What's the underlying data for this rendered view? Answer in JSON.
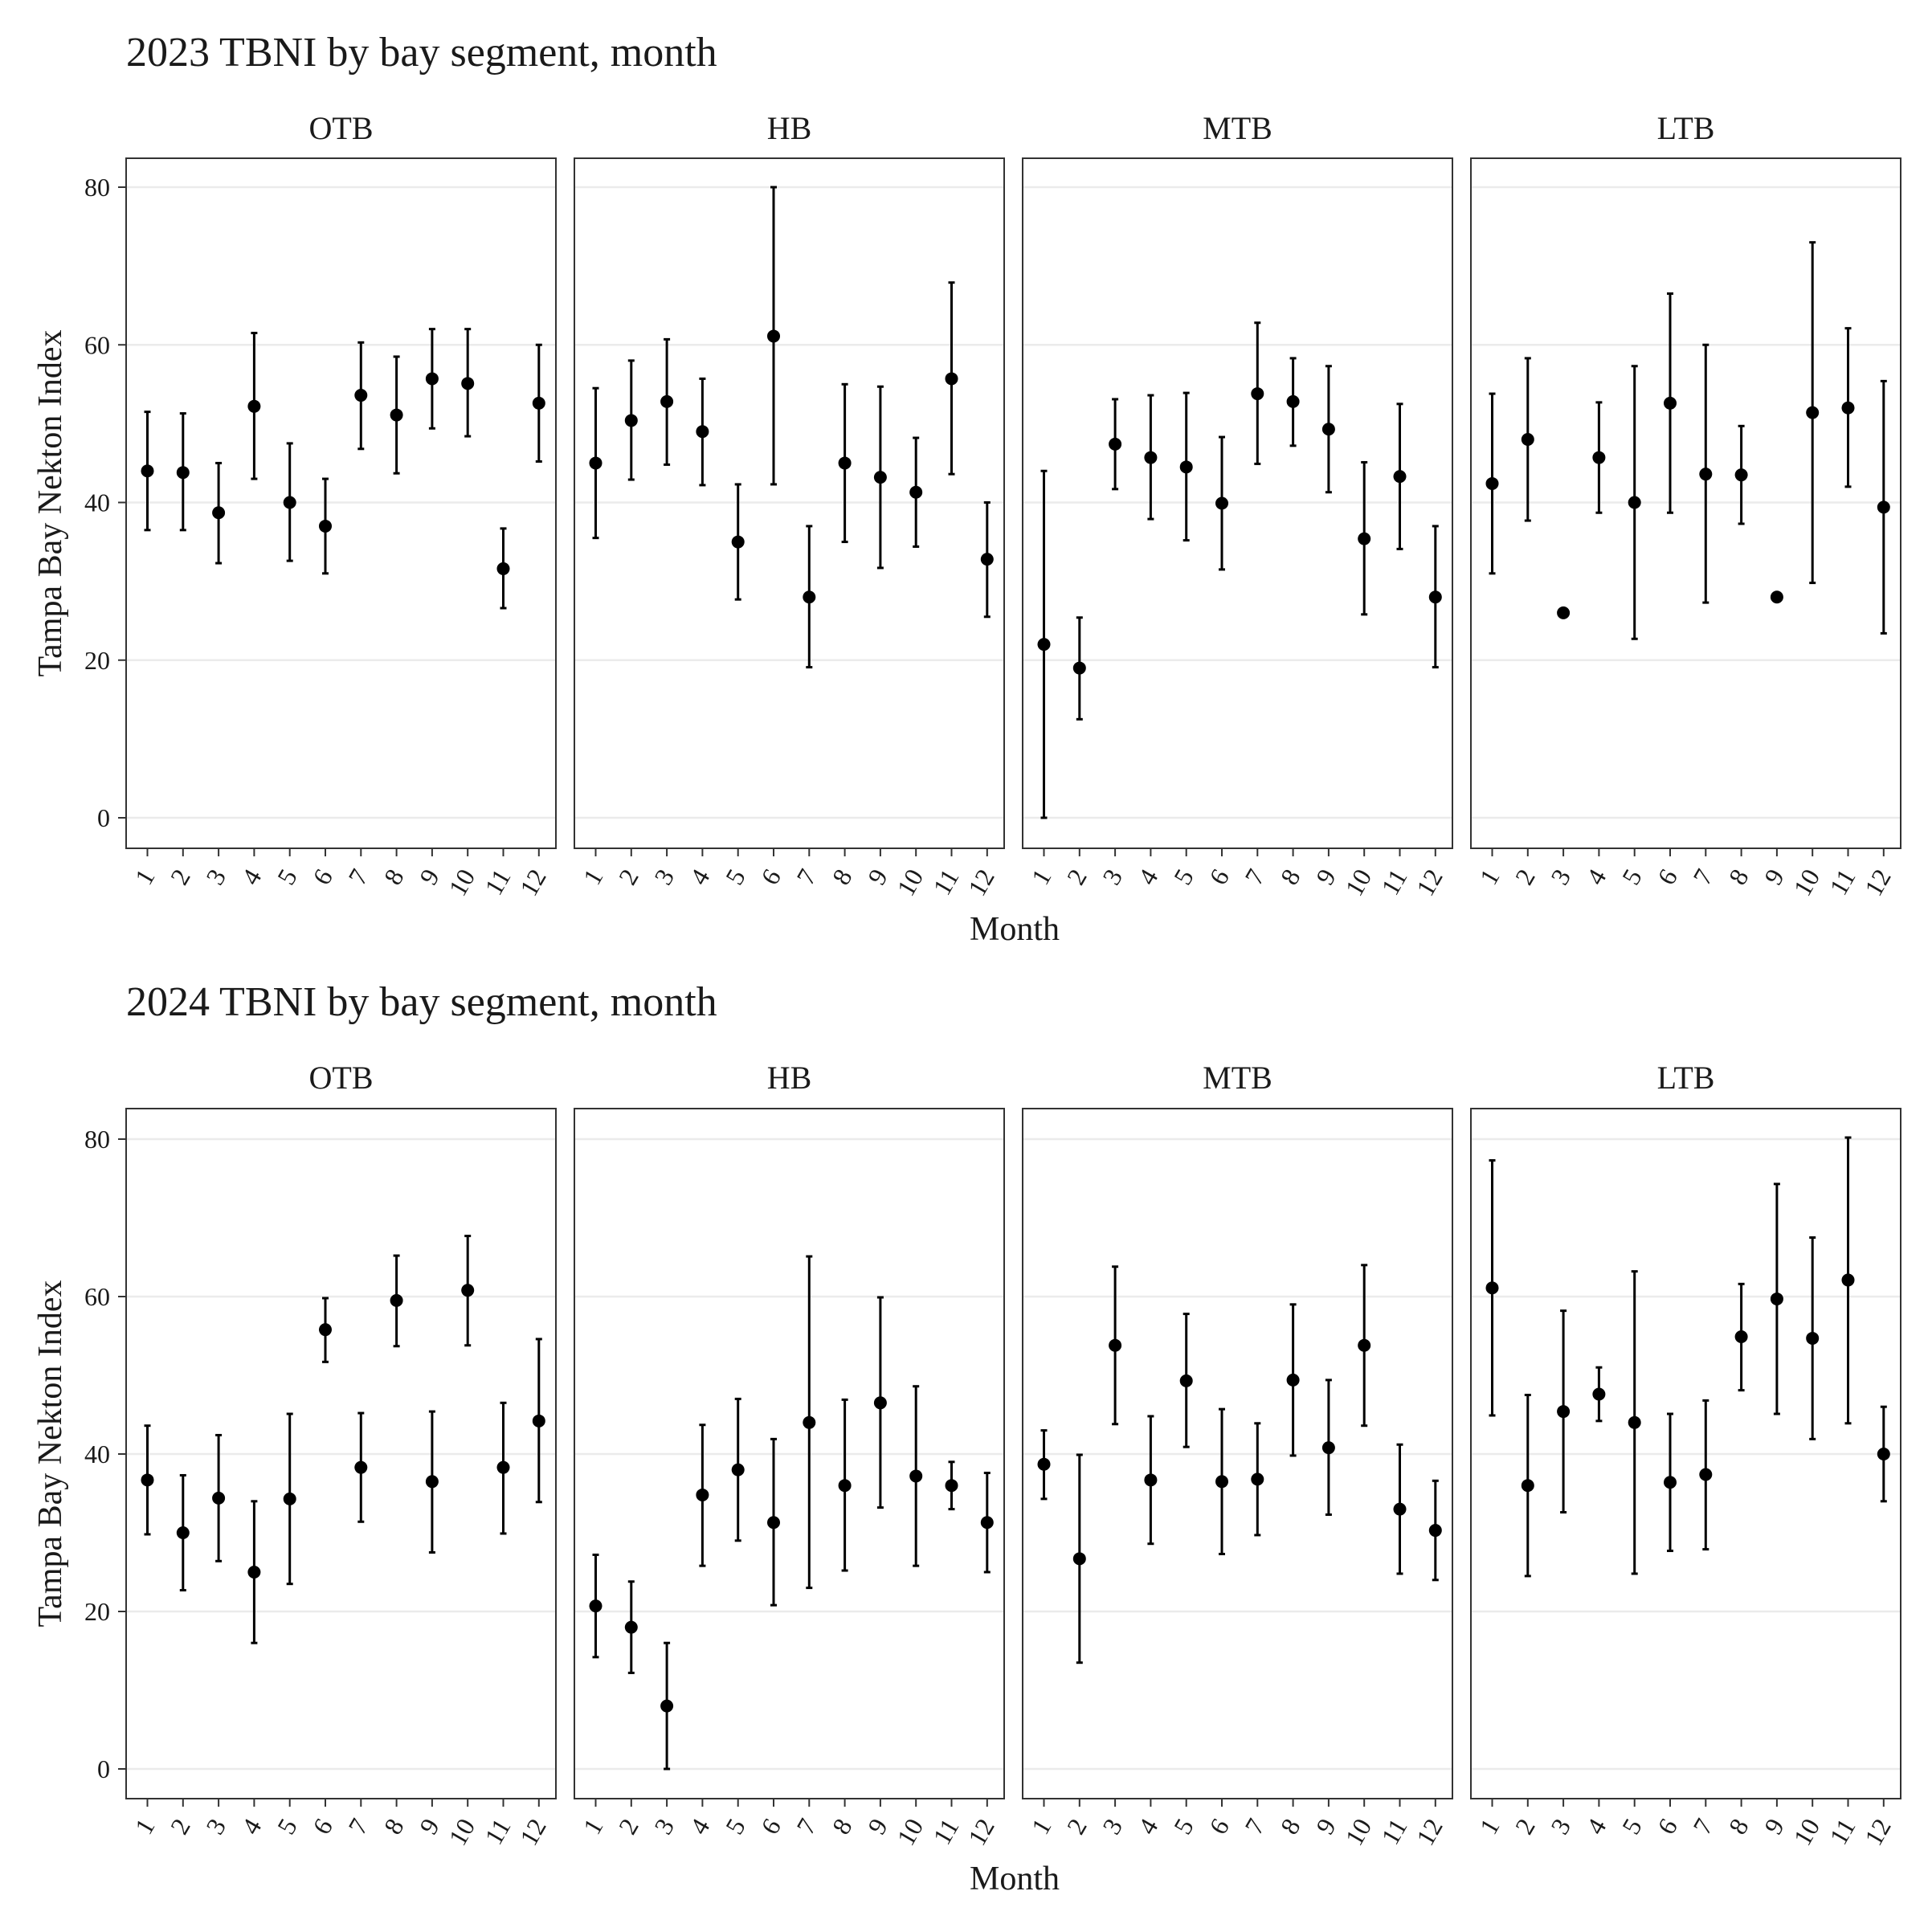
{
  "chart_data": [
    {
      "type": "errorbar",
      "title": "2023 TBNI by bay segment, month",
      "xlabel": "Month",
      "ylabel": "Tampa Bay Nekton Index",
      "ylim": [
        -3.8,
        83.8
      ],
      "yticks": [
        0,
        20,
        40,
        60,
        80
      ],
      "categories": [
        "1",
        "2",
        "3",
        "4",
        "5",
        "6",
        "7",
        "8",
        "9",
        "10",
        "11",
        "12"
      ],
      "grid": "horizontal major",
      "panels": [
        {
          "name": "OTB",
          "points": [
            {
              "x": "1",
              "y": 44,
              "lo": 36.5,
              "hi": 51.5
            },
            {
              "x": "2",
              "y": 43.8,
              "lo": 36.5,
              "hi": 51.3
            },
            {
              "x": "3",
              "y": 38.7,
              "lo": 32.3,
              "hi": 45
            },
            {
              "x": "4",
              "y": 52.2,
              "lo": 43,
              "hi": 61.5
            },
            {
              "x": "5",
              "y": 40,
              "lo": 32.6,
              "hi": 47.5
            },
            {
              "x": "6",
              "y": 37,
              "lo": 31,
              "hi": 43
            },
            {
              "x": "7",
              "y": 53.6,
              "lo": 46.8,
              "hi": 60.3
            },
            {
              "x": "8",
              "y": 51.1,
              "lo": 43.7,
              "hi": 58.5
            },
            {
              "x": "9",
              "y": 55.7,
              "lo": 49.4,
              "hi": 62
            },
            {
              "x": "10",
              "y": 55.1,
              "lo": 48.4,
              "hi": 62
            },
            {
              "x": "11",
              "y": 31.6,
              "lo": 26.6,
              "hi": 36.7
            },
            {
              "x": "12",
              "y": 52.6,
              "lo": 45.2,
              "hi": 60
            }
          ]
        },
        {
          "name": "HB",
          "points": [
            {
              "x": "1",
              "y": 45,
              "lo": 35.5,
              "hi": 54.5
            },
            {
              "x": "2",
              "y": 50.4,
              "lo": 42.9,
              "hi": 58
            },
            {
              "x": "3",
              "y": 52.8,
              "lo": 44.8,
              "hi": 60.7
            },
            {
              "x": "4",
              "y": 49,
              "lo": 42.2,
              "hi": 55.7
            },
            {
              "x": "5",
              "y": 35,
              "lo": 27.7,
              "hi": 42.3
            },
            {
              "x": "6",
              "y": 61.1,
              "lo": 42.3,
              "hi": 80
            },
            {
              "x": "7",
              "y": 28,
              "lo": 19.1,
              "hi": 37
            },
            {
              "x": "8",
              "y": 45,
              "lo": 35,
              "hi": 55
            },
            {
              "x": "9",
              "y": 43.2,
              "lo": 31.7,
              "hi": 54.7
            },
            {
              "x": "10",
              "y": 41.3,
              "lo": 34.4,
              "hi": 48.2
            },
            {
              "x": "11",
              "y": 55.7,
              "lo": 43.6,
              "hi": 67.9
            },
            {
              "x": "12",
              "y": 32.8,
              "lo": 25.5,
              "hi": 40
            }
          ]
        },
        {
          "name": "MTB",
          "points": [
            {
              "x": "1",
              "y": 22,
              "lo": 0,
              "hi": 44
            },
            {
              "x": "2",
              "y": 19,
              "lo": 12.5,
              "hi": 25.4
            },
            {
              "x": "3",
              "y": 47.4,
              "lo": 41.7,
              "hi": 53.1
            },
            {
              "x": "4",
              "y": 45.7,
              "lo": 37.9,
              "hi": 53.6
            },
            {
              "x": "5",
              "y": 44.5,
              "lo": 35.2,
              "hi": 53.9
            },
            {
              "x": "6",
              "y": 39.9,
              "lo": 31.5,
              "hi": 48.3
            },
            {
              "x": "7",
              "y": 53.8,
              "lo": 44.9,
              "hi": 62.8
            },
            {
              "x": "8",
              "y": 52.8,
              "lo": 47.2,
              "hi": 58.3
            },
            {
              "x": "9",
              "y": 49.3,
              "lo": 41.3,
              "hi": 57.3
            },
            {
              "x": "10",
              "y": 35.4,
              "lo": 25.8,
              "hi": 45.1
            },
            {
              "x": "11",
              "y": 43.3,
              "lo": 34.1,
              "hi": 52.5
            },
            {
              "x": "12",
              "y": 28,
              "lo": 19.1,
              "hi": 37
            }
          ]
        },
        {
          "name": "LTB",
          "points": [
            {
              "x": "1",
              "y": 42.4,
              "lo": 31,
              "hi": 53.8
            },
            {
              "x": "2",
              "y": 48,
              "lo": 37.7,
              "hi": 58.3
            },
            {
              "x": "3",
              "y": 26,
              "lo": 26,
              "hi": 26
            },
            {
              "x": "4",
              "y": 45.7,
              "lo": 38.7,
              "hi": 52.7
            },
            {
              "x": "5",
              "y": 40,
              "lo": 22.7,
              "hi": 57.3
            },
            {
              "x": "6",
              "y": 52.6,
              "lo": 38.7,
              "hi": 66.5
            },
            {
              "x": "7",
              "y": 43.6,
              "lo": 27.3,
              "hi": 60
            },
            {
              "x": "8",
              "y": 43.5,
              "lo": 37.3,
              "hi": 49.7
            },
            {
              "x": "9",
              "y": 28,
              "lo": 28,
              "hi": 28
            },
            {
              "x": "10",
              "y": 51.4,
              "lo": 29.8,
              "hi": 73
            },
            {
              "x": "11",
              "y": 52,
              "lo": 42,
              "hi": 62.1
            },
            {
              "x": "12",
              "y": 39.4,
              "lo": 23.4,
              "hi": 55.4
            }
          ]
        }
      ]
    },
    {
      "type": "errorbar",
      "title": "2024 TBNI by bay segment, month",
      "xlabel": "Month",
      "ylabel": "Tampa Bay Nekton Index",
      "ylim": [
        -3.8,
        83.8
      ],
      "yticks": [
        0,
        20,
        40,
        60,
        80
      ],
      "categories": [
        "1",
        "2",
        "3",
        "4",
        "5",
        "6",
        "7",
        "8",
        "9",
        "10",
        "11",
        "12"
      ],
      "grid": "horizontal major",
      "panels": [
        {
          "name": "OTB",
          "points": [
            {
              "x": "1",
              "y": 36.7,
              "lo": 29.8,
              "hi": 43.6
            },
            {
              "x": "2",
              "y": 30,
              "lo": 22.7,
              "hi": 37.3
            },
            {
              "x": "3",
              "y": 34.4,
              "lo": 26.4,
              "hi": 42.4
            },
            {
              "x": "4",
              "y": 25,
              "lo": 16,
              "hi": 34
            },
            {
              "x": "5",
              "y": 34.3,
              "lo": 23.5,
              "hi": 45.1
            },
            {
              "x": "6",
              "y": 55.8,
              "lo": 51.7,
              "hi": 59.8
            },
            {
              "x": "7",
              "y": 38.3,
              "lo": 31.4,
              "hi": 45.2
            },
            {
              "x": "8",
              "y": 59.5,
              "lo": 53.7,
              "hi": 65.2
            },
            {
              "x": "9",
              "y": 36.5,
              "lo": 27.5,
              "hi": 45.4
            },
            {
              "x": "10",
              "y": 60.8,
              "lo": 53.8,
              "hi": 67.7
            },
            {
              "x": "11",
              "y": 38.3,
              "lo": 29.9,
              "hi": 46.5
            },
            {
              "x": "12",
              "y": 44.2,
              "lo": 33.9,
              "hi": 54.6
            }
          ]
        },
        {
          "name": "HB",
          "points": [
            {
              "x": "1",
              "y": 20.7,
              "lo": 14.2,
              "hi": 27.2
            },
            {
              "x": "2",
              "y": 18,
              "lo": 12.2,
              "hi": 23.8
            },
            {
              "x": "3",
              "y": 8,
              "lo": 0,
              "hi": 16
            },
            {
              "x": "4",
              "y": 34.8,
              "lo": 25.8,
              "hi": 43.7
            },
            {
              "x": "5",
              "y": 38,
              "lo": 29,
              "hi": 47
            },
            {
              "x": "6",
              "y": 31.3,
              "lo": 20.8,
              "hi": 41.9
            },
            {
              "x": "7",
              "y": 44,
              "lo": 23,
              "hi": 65.1
            },
            {
              "x": "8",
              "y": 36,
              "lo": 25.2,
              "hi": 46.9
            },
            {
              "x": "9",
              "y": 46.5,
              "lo": 33.2,
              "hi": 59.9
            },
            {
              "x": "10",
              "y": 37.2,
              "lo": 25.8,
              "hi": 48.6
            },
            {
              "x": "11",
              "y": 36,
              "lo": 33,
              "hi": 39
            },
            {
              "x": "12",
              "y": 31.3,
              "lo": 25,
              "hi": 37.6
            }
          ]
        },
        {
          "name": "MTB",
          "points": [
            {
              "x": "1",
              "y": 38.7,
              "lo": 34.3,
              "hi": 43
            },
            {
              "x": "2",
              "y": 26.7,
              "lo": 13.5,
              "hi": 39.9
            },
            {
              "x": "3",
              "y": 53.8,
              "lo": 43.8,
              "hi": 63.8
            },
            {
              "x": "4",
              "y": 36.7,
              "lo": 28.6,
              "hi": 44.8
            },
            {
              "x": "5",
              "y": 49.3,
              "lo": 40.9,
              "hi": 57.8
            },
            {
              "x": "6",
              "y": 36.5,
              "lo": 27.3,
              "hi": 45.7
            },
            {
              "x": "7",
              "y": 36.8,
              "lo": 29.7,
              "hi": 43.9
            },
            {
              "x": "8",
              "y": 49.4,
              "lo": 39.8,
              "hi": 59
            },
            {
              "x": "9",
              "y": 40.8,
              "lo": 32.3,
              "hi": 49.4
            },
            {
              "x": "10",
              "y": 53.8,
              "lo": 43.6,
              "hi": 64
            },
            {
              "x": "11",
              "y": 33,
              "lo": 24.8,
              "hi": 41.2
            },
            {
              "x": "12",
              "y": 30.3,
              "lo": 24,
              "hi": 36.6
            }
          ]
        },
        {
          "name": "LTB",
          "points": [
            {
              "x": "1",
              "y": 61.1,
              "lo": 44.9,
              "hi": 77.3
            },
            {
              "x": "2",
              "y": 36,
              "lo": 24.5,
              "hi": 47.5
            },
            {
              "x": "3",
              "y": 45.4,
              "lo": 32.6,
              "hi": 58.2
            },
            {
              "x": "4",
              "y": 47.6,
              "lo": 44.2,
              "hi": 51
            },
            {
              "x": "5",
              "y": 44,
              "lo": 24.8,
              "hi": 63.2
            },
            {
              "x": "6",
              "y": 36.4,
              "lo": 27.7,
              "hi": 45.1
            },
            {
              "x": "7",
              "y": 37.4,
              "lo": 27.9,
              "hi": 46.8
            },
            {
              "x": "8",
              "y": 54.9,
              "lo": 48.1,
              "hi": 61.6
            },
            {
              "x": "9",
              "y": 59.7,
              "lo": 45.1,
              "hi": 74.3
            },
            {
              "x": "10",
              "y": 54.7,
              "lo": 41.9,
              "hi": 67.5
            },
            {
              "x": "11",
              "y": 62.1,
              "lo": 43.9,
              "hi": 80.2
            },
            {
              "x": "12",
              "y": 40,
              "lo": 34,
              "hi": 46
            }
          ]
        }
      ]
    }
  ]
}
